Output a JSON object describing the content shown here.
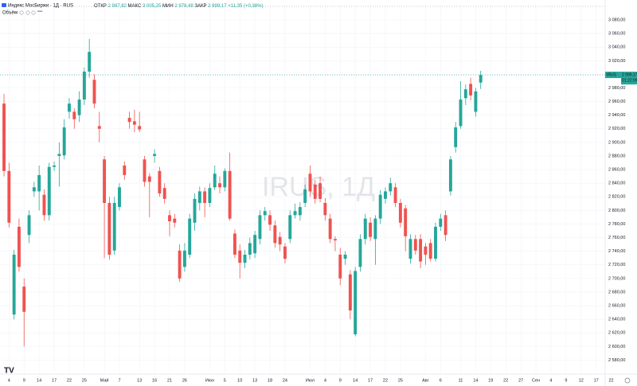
{
  "chart_data": {
    "type": "candlestick",
    "title": "Индекс МосБиржи · 1Д · RUS",
    "volume_label": "Объём",
    "watermark": "IRUS, 1Д",
    "ohlc_legend": [
      {
        "name": "ОТКР",
        "value": 2987.82,
        "label": "2 987,82"
      },
      {
        "name": "МАКС",
        "value": 3005.25,
        "label": "3 005,25"
      },
      {
        "name": "МИН",
        "value": 2978.49,
        "label": "2 978,49"
      },
      {
        "name": "ЗАКР",
        "value": 2999.17,
        "label": "2 999,17"
      }
    ],
    "change": {
      "value": 11.35,
      "label": "+11,35"
    },
    "change_pct": {
      "value": 0.38,
      "label": "(+0,38%)"
    },
    "price_tag": {
      "symbol": "IRUS",
      "label": "2 999,17",
      "countdown": "01:22:09"
    },
    "up_color": "#26a69a",
    "down_color": "#ef5350",
    "grid": true,
    "open": [
      2957,
      2858,
      2647,
      2776,
      2688,
      2764,
      2828,
      2828,
      2823,
      2793,
      2864,
      2880,
      2881,
      2945,
      2945,
      2940,
      2963,
      3004,
      2992,
      2924,
      2875,
      2811,
      2741,
      2805,
      2866,
      2936,
      2931,
      2924,
      2875,
      2850,
      2880,
      2858,
      2833,
      2793,
      2788,
      2741,
      2717,
      2735,
      2782,
      2811,
      2828,
      2811,
      2834,
      2840,
      2834,
      2858,
      2766,
      2741,
      2723,
      2735,
      2737,
      2758,
      2793,
      2793,
      2778,
      2761,
      2747,
      2758,
      2793,
      2793,
      2811,
      2854,
      2838,
      2840,
      2811,
      2788,
      2758,
      2735,
      2729,
      2706,
      2618,
      2717,
      2758,
      2782,
      2758,
      2788,
      2817,
      2828,
      2834,
      2811,
      2803,
      2729,
      2758,
      2758,
      2747,
      2752,
      2729,
      2776,
      2793,
      2828,
      2893,
      2924,
      2965,
      2986,
      2945,
      2987.82
    ],
    "high": [
      2971,
      2870,
      2742,
      2788,
      2700,
      2800,
      2842,
      2866,
      2831,
      2870,
      2872,
      2900,
      2934,
      2965,
      2950,
      2975,
      3010,
      3052,
      3000,
      2945,
      2880,
      2820,
      2820,
      2840,
      2872,
      2945,
      2948,
      2945,
      2880,
      2855,
      2890,
      2864,
      2840,
      2800,
      2795,
      2750,
      2752,
      2795,
      2825,
      2835,
      2834,
      2840,
      2866,
      2850,
      2862,
      2885,
      2772,
      2750,
      2742,
      2760,
      2770,
      2800,
      2805,
      2800,
      2785,
      2768,
      2752,
      2800,
      2810,
      2812,
      2838,
      2866,
      2845,
      2850,
      2818,
      2795,
      2762,
      2745,
      2740,
      2712,
      2717,
      2765,
      2795,
      2790,
      2793,
      2830,
      2834,
      2848,
      2840,
      2817,
      2808,
      2765,
      2764,
      2765,
      2752,
      2758,
      2782,
      2795,
      2800,
      2880,
      2930,
      2990,
      2985,
      2995,
      2980,
      3005.25
    ],
    "low": [
      2850,
      2775,
      2640,
      2710,
      2600,
      2752,
      2820,
      2800,
      2785,
      2785,
      2858,
      2835,
      2875,
      2935,
      2920,
      2930,
      2955,
      2995,
      2950,
      2900,
      2730,
      2728,
      2735,
      2800,
      2845,
      2920,
      2915,
      2915,
      2835,
      2790,
      2870,
      2820,
      2810,
      2762,
      2775,
      2695,
      2710,
      2730,
      2770,
      2800,
      2790,
      2805,
      2830,
      2825,
      2828,
      2785,
      2730,
      2700,
      2715,
      2728,
      2730,
      2750,
      2785,
      2770,
      2745,
      2740,
      2722,
      2752,
      2788,
      2785,
      2805,
      2820,
      2810,
      2812,
      2785,
      2752,
      2740,
      2690,
      2720,
      2640,
      2615,
      2710,
      2750,
      2755,
      2720,
      2780,
      2810,
      2822,
      2805,
      2775,
      2740,
      2722,
      2735,
      2715,
      2720,
      2725,
      2725,
      2770,
      2755,
      2822,
      2885,
      2920,
      2955,
      2962,
      2938,
      2978.49
    ],
    "close": [
      2858,
      2782,
      2735,
      2717,
      2651,
      2793,
      2834,
      2852,
      2793,
      2864,
      2866,
      2883,
      2922,
      2957,
      2934,
      2963,
      3004,
      3033,
      2957,
      2920,
      2811,
      2735,
      2811,
      2834,
      2852,
      2930,
      2926,
      2919,
      2842,
      2842,
      2883,
      2825,
      2817,
      2784,
      2782,
      2700,
      2741,
      2788,
      2817,
      2828,
      2811,
      2833,
      2854,
      2834,
      2858,
      2788,
      2735,
      2723,
      2735,
      2752,
      2764,
      2793,
      2799,
      2779,
      2752,
      2750,
      2729,
      2793,
      2799,
      2805,
      2831,
      2828,
      2817,
      2817,
      2793,
      2758,
      2756,
      2700,
      2735,
      2653,
      2711,
      2758,
      2788,
      2761,
      2788,
      2823,
      2828,
      2840,
      2811,
      2782,
      2762,
      2758,
      2741,
      2725,
      2735,
      2729,
      2776,
      2788,
      2764,
      2875,
      2922,
      2963,
      2978,
      2969,
      2975,
      2999.17
    ],
    "ylim": [
      2559.5,
      3103.4
    ],
    "yticks": [
      {
        "value": 2580,
        "label": "2 580,00"
      },
      {
        "value": 2600,
        "label": "2 600,00"
      },
      {
        "value": 2620,
        "label": "2 620,00"
      },
      {
        "value": 2640,
        "label": "2 640,00"
      },
      {
        "value": 2660,
        "label": "2 660,00"
      },
      {
        "value": 2680,
        "label": "2 680,00"
      },
      {
        "value": 2700,
        "label": "2 700,00"
      },
      {
        "value": 2720,
        "label": "2 720,00"
      },
      {
        "value": 2740,
        "label": "2 740,00"
      },
      {
        "value": 2760,
        "label": "2 760,00"
      },
      {
        "value": 2780,
        "label": "2 780,00"
      },
      {
        "value": 2800,
        "label": "2 800,00"
      },
      {
        "value": 2820,
        "label": "2 820,00"
      },
      {
        "value": 2840,
        "label": "2 840,00"
      },
      {
        "value": 2860,
        "label": "2 860,00"
      },
      {
        "value": 2880,
        "label": "2 880,00"
      },
      {
        "value": 2900,
        "label": "2 900,00"
      },
      {
        "value": 2920,
        "label": "2 920,00"
      },
      {
        "value": 2940,
        "label": "2 940,00"
      },
      {
        "value": 2960,
        "label": "2 960,00"
      },
      {
        "value": 2980,
        "label": "2 980,00"
      },
      {
        "value": 3000,
        "label": "3 000,00"
      },
      {
        "value": 3020,
        "label": "3 020,00"
      },
      {
        "value": 3040,
        "label": "3 040,00"
      },
      {
        "value": 3060,
        "label": "3 060,00"
      },
      {
        "value": 3080,
        "label": "3 080,00"
      }
    ],
    "xlim": [
      -0.8,
      119.8
    ],
    "xticks": [
      {
        "value": 1,
        "label": "4"
      },
      {
        "value": 4,
        "label": "9"
      },
      {
        "value": 7,
        "label": "14"
      },
      {
        "value": 10,
        "label": "17"
      },
      {
        "value": 13,
        "label": "22"
      },
      {
        "value": 16,
        "label": "25"
      },
      {
        "value": 20,
        "label": "Май"
      },
      {
        "value": 23,
        "label": "7"
      },
      {
        "value": 27,
        "label": "13"
      },
      {
        "value": 30,
        "label": "16"
      },
      {
        "value": 33,
        "label": "21"
      },
      {
        "value": 36,
        "label": "26"
      },
      {
        "value": 41,
        "label": "Июн"
      },
      {
        "value": 44,
        "label": "5"
      },
      {
        "value": 47,
        "label": "10"
      },
      {
        "value": 50,
        "label": "13"
      },
      {
        "value": 53,
        "label": "18"
      },
      {
        "value": 56,
        "label": "24"
      },
      {
        "value": 61,
        "label": "Июл"
      },
      {
        "value": 64,
        "label": "4"
      },
      {
        "value": 67,
        "label": "9"
      },
      {
        "value": 70,
        "label": "14"
      },
      {
        "value": 73,
        "label": "17"
      },
      {
        "value": 76,
        "label": "22"
      },
      {
        "value": 79,
        "label": "25"
      },
      {
        "value": 84,
        "label": "Авг"
      },
      {
        "value": 87,
        "label": "6"
      },
      {
        "value": 91,
        "label": "11"
      },
      {
        "value": 94,
        "label": "14"
      },
      {
        "value": 97,
        "label": "19"
      },
      {
        "value": 100,
        "label": "22"
      },
      {
        "value": 103,
        "label": "27"
      },
      {
        "value": 106,
        "label": "Сен"
      },
      {
        "value": 109,
        "label": "4"
      },
      {
        "value": 112,
        "label": "9"
      },
      {
        "value": 115,
        "label": "12"
      },
      {
        "value": 118,
        "label": "17"
      },
      {
        "value": 121,
        "label": "22"
      }
    ]
  }
}
